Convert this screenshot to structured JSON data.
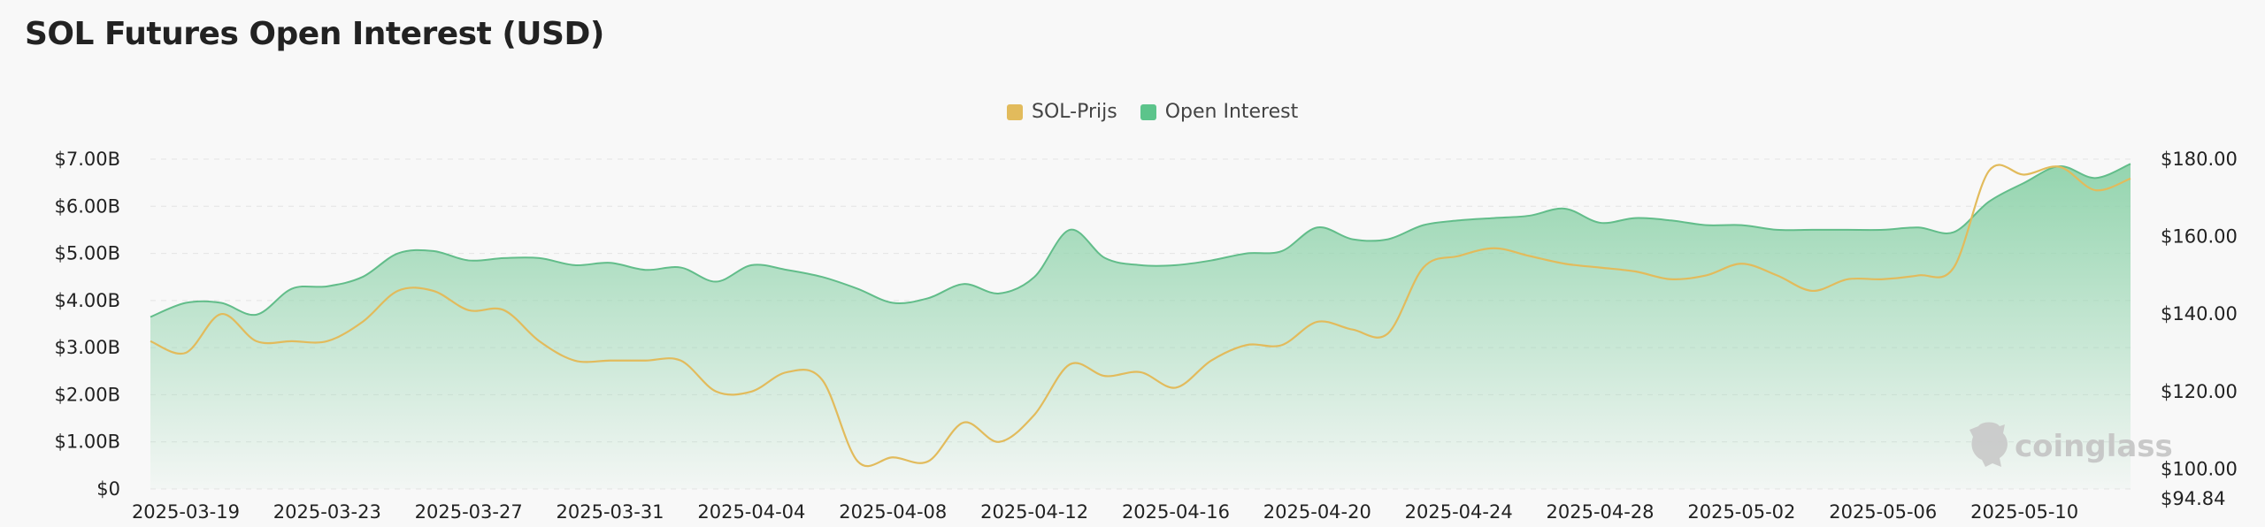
{
  "chart_data": {
    "type": "area",
    "title": "SOL Futures Open Interest (USD)",
    "legend_position": "top-center",
    "grid": true,
    "colors": {
      "price": "#e2bb5c",
      "oi_line": "#62bd8a",
      "oi_fill": "#8fd3ab"
    },
    "x": [
      "2025-03-18",
      "2025-03-19",
      "2025-03-20",
      "2025-03-21",
      "2025-03-22",
      "2025-03-23",
      "2025-03-24",
      "2025-03-25",
      "2025-03-26",
      "2025-03-27",
      "2025-03-28",
      "2025-03-29",
      "2025-03-30",
      "2025-03-31",
      "2025-04-01",
      "2025-04-02",
      "2025-04-03",
      "2025-04-04",
      "2025-04-05",
      "2025-04-06",
      "2025-04-07",
      "2025-04-08",
      "2025-04-09",
      "2025-04-10",
      "2025-04-11",
      "2025-04-12",
      "2025-04-13",
      "2025-04-14",
      "2025-04-15",
      "2025-04-16",
      "2025-04-17",
      "2025-04-18",
      "2025-04-19",
      "2025-04-20",
      "2025-04-21",
      "2025-04-22",
      "2025-04-23",
      "2025-04-24",
      "2025-04-25",
      "2025-04-26",
      "2025-04-27",
      "2025-04-28",
      "2025-04-29",
      "2025-04-30",
      "2025-05-01",
      "2025-05-02",
      "2025-05-03",
      "2025-05-04",
      "2025-05-05",
      "2025-05-06",
      "2025-05-07",
      "2025-05-08",
      "2025-05-09",
      "2025-05-10",
      "2025-05-11",
      "2025-05-12",
      "2025-05-13"
    ],
    "x_tick_labels": [
      "2025-03-19",
      "2025-03-23",
      "2025-03-27",
      "2025-03-31",
      "2025-04-04",
      "2025-04-08",
      "2025-04-12",
      "2025-04-16",
      "2025-04-20",
      "2025-04-24",
      "2025-04-28",
      "2025-05-02",
      "2025-05-06",
      "2025-05-10"
    ],
    "y_left": {
      "ticks": [
        "$0",
        "$1.00B",
        "$2.00B",
        "$3.00B",
        "$4.00B",
        "$5.00B",
        "$6.00B",
        "$7.00B"
      ],
      "ylim": [
        0,
        7.0
      ],
      "unit": "B USD"
    },
    "y_right": {
      "ticks": [
        "$94.84",
        "$100.00",
        "$120.00",
        "$140.00",
        "$160.00",
        "$180.00"
      ],
      "ylim": [
        94.84,
        180
      ]
    },
    "series": [
      {
        "name": "SOL-Prijs",
        "axis": "right",
        "values": [
          133,
          130,
          140,
          133,
          133,
          133,
          138,
          146,
          146,
          141,
          141,
          133,
          128,
          128,
          128,
          128,
          120,
          120,
          125,
          123,
          102,
          103,
          102,
          112,
          107,
          114,
          127,
          124,
          125,
          121,
          128,
          132,
          132,
          138,
          136,
          135,
          152,
          155,
          157,
          155,
          153,
          152,
          151,
          149,
          150,
          153,
          150,
          146,
          149,
          149,
          150,
          152,
          177,
          176,
          178,
          172,
          175
        ]
      },
      {
        "name": "Open Interest",
        "axis": "left",
        "values": [
          3.65,
          3.95,
          3.95,
          3.7,
          4.25,
          4.3,
          4.5,
          5.0,
          5.05,
          4.85,
          4.9,
          4.9,
          4.75,
          4.8,
          4.65,
          4.7,
          4.4,
          4.75,
          4.65,
          4.5,
          4.25,
          3.95,
          4.05,
          4.35,
          4.15,
          4.5,
          5.5,
          4.9,
          4.75,
          4.75,
          4.85,
          5.0,
          5.05,
          5.55,
          5.3,
          5.3,
          5.6,
          5.7,
          5.75,
          5.8,
          5.95,
          5.65,
          5.75,
          5.7,
          5.6,
          5.6,
          5.5,
          5.5,
          5.5,
          5.5,
          5.55,
          5.45,
          6.1,
          6.5,
          6.85,
          6.6,
          6.9
        ]
      }
    ]
  },
  "watermark": {
    "text": "coinglass",
    "icon": "coinglass-logo-icon"
  }
}
